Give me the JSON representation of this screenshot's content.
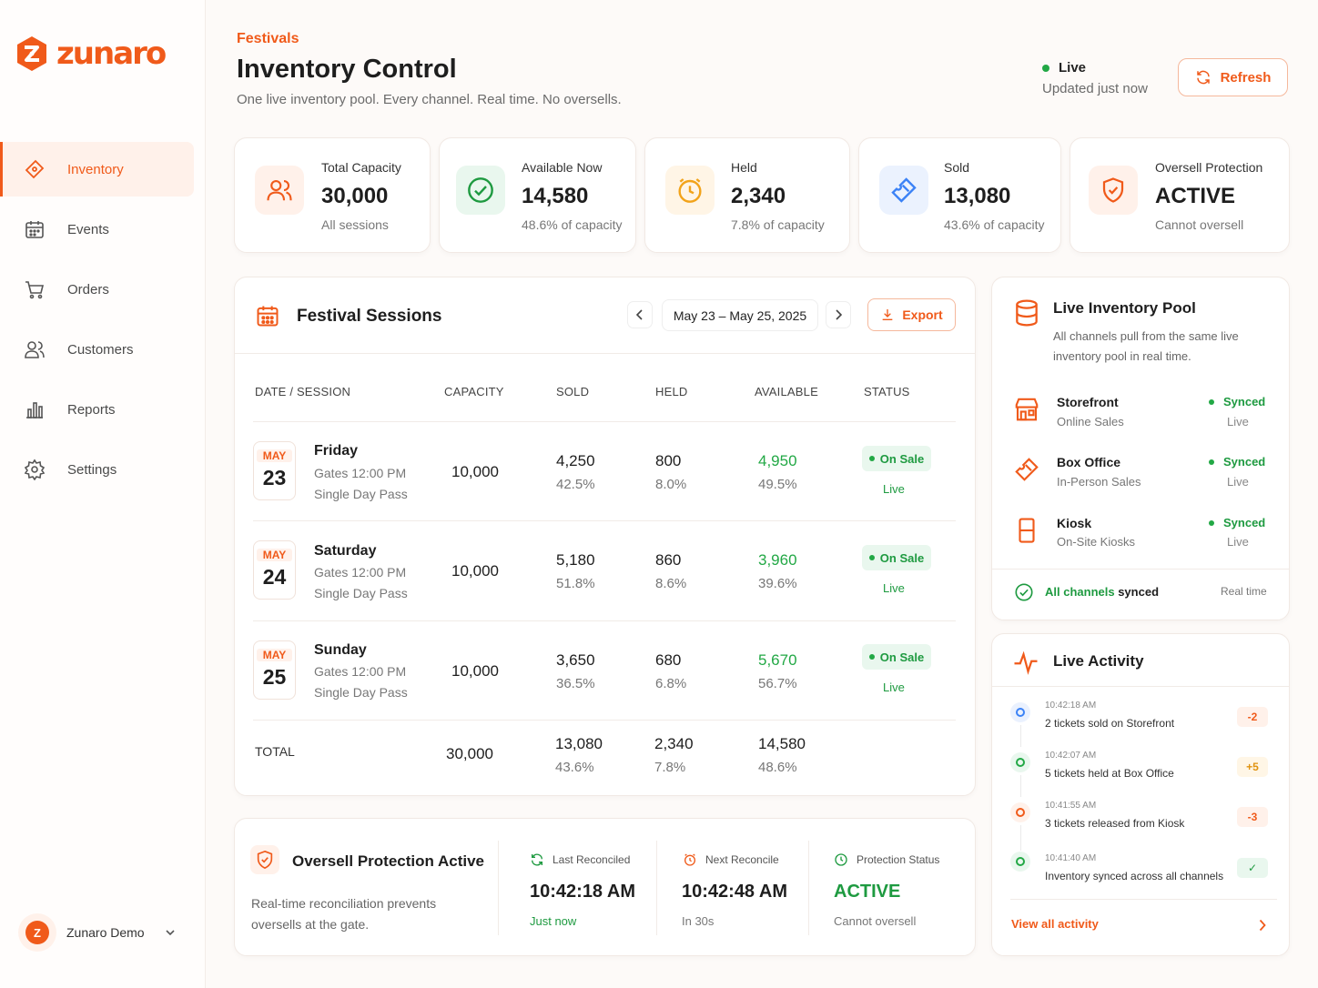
{
  "brand": {
    "name": "zunaro",
    "accent": "#f05a1a"
  },
  "nav": [
    {
      "label": "Inventory",
      "icon": "ticket-icon",
      "active": true
    },
    {
      "label": "Events",
      "icon": "calendar-icon"
    },
    {
      "label": "Orders",
      "icon": "cart-icon"
    },
    {
      "label": "Customers",
      "icon": "users-icon"
    },
    {
      "label": "Reports",
      "icon": "bar-chart-icon"
    },
    {
      "label": "Settings",
      "icon": "gear-icon"
    }
  ],
  "user": {
    "initial": "Z",
    "name": "Zunaro Demo"
  },
  "header": {
    "eyebrow": "Festivals",
    "title": "Inventory Control",
    "subtitle": "One live inventory pool. Every channel. Real time. No oversells.",
    "live_label": "Live",
    "updated": "Updated just now",
    "refresh_label": "Refresh"
  },
  "kpis": [
    {
      "label": "Total Capacity",
      "value": "30,000",
      "sub": "All sessions",
      "icon": "users-icon"
    },
    {
      "label": "Available Now",
      "value": "14,580",
      "sub": "48.6% of capacity",
      "icon": "check-circle-icon"
    },
    {
      "label": "Held",
      "value": "2,340",
      "sub": "7.8% of capacity",
      "icon": "clock-icon"
    },
    {
      "label": "Sold",
      "value": "13,080",
      "sub": "43.6% of capacity",
      "icon": "ticket-icon"
    },
    {
      "label": "Oversell Protection",
      "value": "ACTIVE",
      "sub": "Cannot oversell",
      "icon": "shield-icon"
    }
  ],
  "sessions": {
    "title": "Festival Sessions",
    "date_range": "May 23 – May 25, 2025",
    "export_label": "Export",
    "columns": [
      "DATE / SESSION",
      "CAPACITY",
      "SOLD",
      "HELD",
      "AVAILABLE",
      "STATUS"
    ],
    "rows": [
      {
        "month": "MAY",
        "day": "23",
        "name": "Friday",
        "gates": "Gates 12:00 PM",
        "pass": "Single Day Pass",
        "capacity": "10,000",
        "sold": "4,250",
        "sold_pct": "42.5%",
        "held": "800",
        "held_pct": "8.0%",
        "available": "4,950",
        "available_pct": "49.5%",
        "status": "On Sale",
        "status_sub": "Live"
      },
      {
        "month": "MAY",
        "day": "24",
        "name": "Saturday",
        "gates": "Gates 12:00 PM",
        "pass": "Single Day Pass",
        "capacity": "10,000",
        "sold": "5,180",
        "sold_pct": "51.8%",
        "held": "860",
        "held_pct": "8.6%",
        "available": "3,960",
        "available_pct": "39.6%",
        "status": "On Sale",
        "status_sub": "Live"
      },
      {
        "month": "MAY",
        "day": "25",
        "name": "Sunday",
        "gates": "Gates 12:00 PM",
        "pass": "Single Day Pass",
        "capacity": "10,000",
        "sold": "3,650",
        "sold_pct": "36.5%",
        "held": "680",
        "held_pct": "6.8%",
        "available": "5,670",
        "available_pct": "56.7%",
        "status": "On Sale",
        "status_sub": "Live"
      }
    ],
    "total": {
      "label": "TOTAL",
      "capacity": "30,000",
      "sold": "13,080",
      "sold_pct": "43.6%",
      "held": "2,340",
      "held_pct": "7.8%",
      "available": "14,580",
      "available_pct": "48.6%"
    }
  },
  "oversell": {
    "title": "Oversell Protection Active",
    "desc": "Real-time reconciliation prevents oversells at the gate.",
    "metrics": [
      {
        "label": "Last Reconciled",
        "value": "10:42:18 AM",
        "sub": "Just now"
      },
      {
        "label": "Next Reconcile",
        "value": "10:42:48 AM",
        "sub": "In 30s"
      },
      {
        "label": "Protection Status",
        "value": "ACTIVE",
        "sub": "Cannot oversell"
      }
    ]
  },
  "pool": {
    "title": "Live Inventory Pool",
    "desc": "All channels pull from the same live inventory pool in real time.",
    "channels": [
      {
        "name": "Storefront",
        "sub": "Online Sales",
        "status": "Synced",
        "status_sub": "Live",
        "icon": "store-icon"
      },
      {
        "name": "Box Office",
        "sub": "In-Person Sales",
        "status": "Synced",
        "status_sub": "Live",
        "icon": "ticket-icon"
      },
      {
        "name": "Kiosk",
        "sub": "On-Site Kiosks",
        "status": "Synced",
        "status_sub": "Live",
        "icon": "kiosk-icon"
      }
    ],
    "footer_green": "All channels",
    "footer_dark": "synced",
    "footer_right": "Real time"
  },
  "activity": {
    "title": "Live Activity",
    "items": [
      {
        "time": "10:42:18 AM",
        "text": "2 tickets sold on Storefront",
        "chip": "-2",
        "color": "#3b82f6"
      },
      {
        "time": "10:42:07 AM",
        "text": "5 tickets held at Box Office",
        "chip": "+5",
        "color": "#22a845"
      },
      {
        "time": "10:41:55 AM",
        "text": "3 tickets released from Kiosk",
        "chip": "-3",
        "color": "#f05a1a"
      },
      {
        "time": "10:41:40 AM",
        "text": "Inventory synced across all channels",
        "chip": "✓",
        "color": "#22a845"
      }
    ],
    "view_all": "View all activity"
  }
}
